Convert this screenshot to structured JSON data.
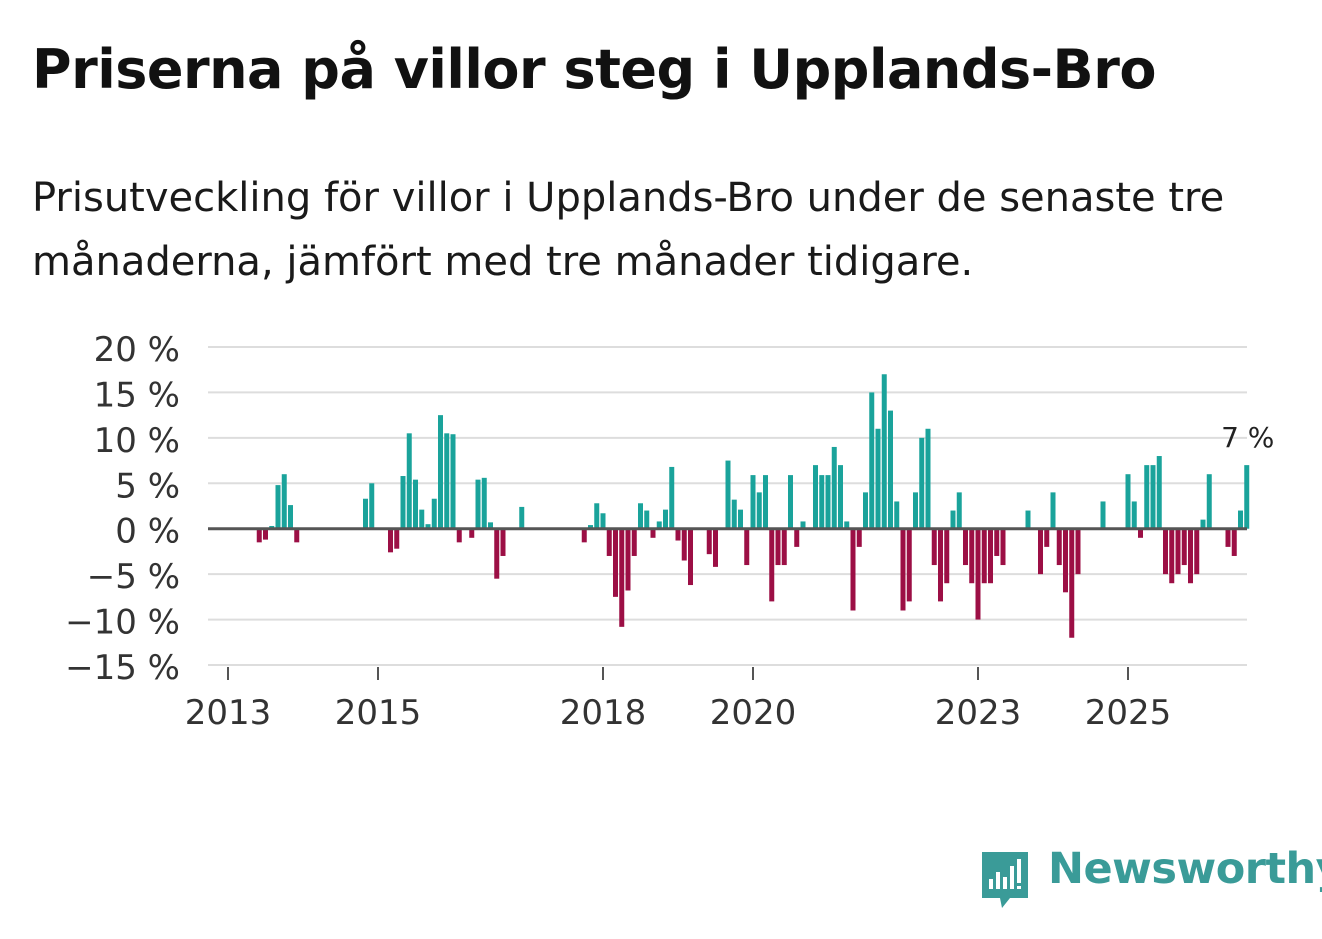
{
  "title": "Priserna på villor steg i Upplands-Bro",
  "subtitle": "Prisutveckling för villor i Upplands-Bro under de senaste tre månaderna, jämfört med tre månader tidigare.",
  "brand": {
    "name": "Newsworthy",
    "color": "#3a9b98",
    "icon": "newsworthy-chart-bubble-icon"
  },
  "colors": {
    "positive": "#1aa39b",
    "negative": "#9c0f45",
    "grid": "#dddddd",
    "zero": "#555555",
    "text": "#333333"
  },
  "chart_data": {
    "type": "bar",
    "title": "Priserna på villor steg i Upplands-Bro",
    "xlabel": "",
    "ylabel": "",
    "ylim": [
      -15,
      20
    ],
    "yticks": [
      20,
      15,
      10,
      5,
      0,
      -5,
      -10,
      -15
    ],
    "ytick_labels": [
      "20 %",
      "15 %",
      "10 %",
      "5 %",
      "0 %",
      "−5 %",
      "−10 %",
      "−15 %"
    ],
    "xticks": [
      {
        "label": "2013",
        "month_index": 0
      },
      {
        "label": "2015",
        "month_index": 24
      },
      {
        "label": "2018",
        "month_index": 60
      },
      {
        "label": "2020",
        "month_index": 84
      },
      {
        "label": "2023",
        "month_index": 120
      },
      {
        "label": "2025",
        "month_index": 144
      }
    ],
    "start": "2013-01",
    "values": [
      null,
      null,
      null,
      null,
      null,
      -1.5,
      -1.2,
      0.3,
      4.8,
      6.0,
      2.6,
      -1.5,
      null,
      null,
      null,
      null,
      null,
      null,
      null,
      null,
      null,
      null,
      3.3,
      5.0,
      null,
      null,
      -2.6,
      -2.2,
      5.8,
      10.5,
      5.4,
      2.1,
      0.5,
      3.3,
      12.5,
      10.5,
      10.4,
      -1.5,
      null,
      -1.0,
      5.4,
      5.6,
      0.7,
      -5.5,
      -3.0,
      null,
      null,
      2.4,
      null,
      null,
      null,
      null,
      null,
      null,
      null,
      null,
      null,
      -1.5,
      0.4,
      2.8,
      1.7,
      -3.0,
      -7.5,
      -10.8,
      -6.8,
      -3.0,
      2.8,
      2.0,
      -1.0,
      0.8,
      2.1,
      6.8,
      -1.3,
      -3.5,
      -6.2,
      null,
      null,
      -2.8,
      -4.2,
      null,
      7.5,
      3.2,
      2.1,
      -4.0,
      5.9,
      4.0,
      5.9,
      -8.0,
      -4.0,
      -4.0,
      5.9,
      -2.0,
      0.8,
      null,
      7.0,
      5.9,
      5.9,
      9.0,
      7.0,
      0.8,
      -9.0,
      -2.0,
      4.0,
      15.0,
      11.0,
      17.0,
      13.0,
      3.0,
      -9.0,
      -8.0,
      4.0,
      10.0,
      11.0,
      -4.0,
      -8.0,
      -6.0,
      2.0,
      4.0,
      -4.0,
      -6.0,
      -10.0,
      -6.0,
      -6.0,
      -3.0,
      -4.0,
      null,
      null,
      null,
      2.0,
      null,
      -5.0,
      -2.0,
      4.0,
      -4.0,
      -7.0,
      -12.0,
      -5.0,
      null,
      null,
      null,
      3.0,
      null,
      null,
      null,
      6.0,
      3.0,
      -1.0,
      7.0,
      7.0,
      8.0,
      -5.0,
      -6.0,
      -5.0,
      -4.0,
      -6.0,
      -5.0,
      1.0,
      6.0,
      null,
      null,
      -2.0,
      -3.0,
      2.0,
      7.0
    ],
    "last_value_label": "7 %"
  }
}
